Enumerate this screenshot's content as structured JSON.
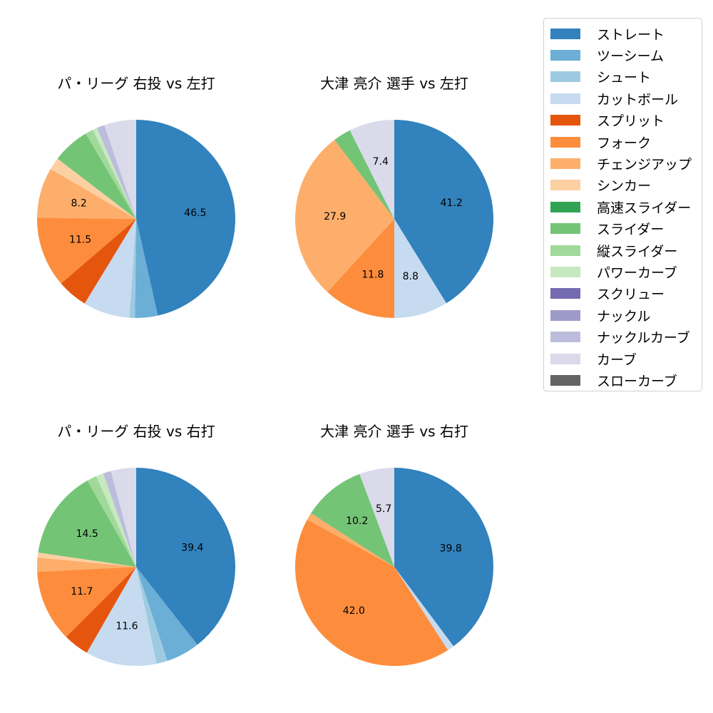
{
  "legend": {
    "items": [
      {
        "label": "ストレート",
        "color": "#3182bd"
      },
      {
        "label": "ツーシーム",
        "color": "#6baed6"
      },
      {
        "label": "シュート",
        "color": "#9ecae1"
      },
      {
        "label": "カットボール",
        "color": "#c6dbef"
      },
      {
        "label": "スプリット",
        "color": "#e6550d"
      },
      {
        "label": "フォーク",
        "color": "#fd8d3c"
      },
      {
        "label": "チェンジアップ",
        "color": "#fdae6b"
      },
      {
        "label": "シンカー",
        "color": "#fdd0a2"
      },
      {
        "label": "高速スライダー",
        "color": "#31a354"
      },
      {
        "label": "スライダー",
        "color": "#74c476"
      },
      {
        "label": "縦スライダー",
        "color": "#a1d99b"
      },
      {
        "label": "パワーカーブ",
        "color": "#c7e9c0"
      },
      {
        "label": "スクリュー",
        "color": "#756bb1"
      },
      {
        "label": "ナックル",
        "color": "#9e9ac8"
      },
      {
        "label": "ナックルカーブ",
        "color": "#bcbddc"
      },
      {
        "label": "カーブ",
        "color": "#dadaeb"
      },
      {
        "label": "スローカーブ",
        "color": "#636363"
      }
    ]
  },
  "chart_data": [
    {
      "type": "pie",
      "title": "パ・リーグ 右投 vs 左打",
      "label_threshold": 8,
      "slices": [
        {
          "name": "ストレート",
          "value": 46.5
        },
        {
          "name": "ツーシーム",
          "value": 3.7
        },
        {
          "name": "シュート",
          "value": 0.9
        },
        {
          "name": "カットボール",
          "value": 7.6
        },
        {
          "name": "スプリット",
          "value": 5.0
        },
        {
          "name": "フォーク",
          "value": 11.5
        },
        {
          "name": "チェンジアップ",
          "value": 8.2
        },
        {
          "name": "シンカー",
          "value": 2.0
        },
        {
          "name": "スライダー",
          "value": 6.1
        },
        {
          "name": "縦スライダー",
          "value": 1.3
        },
        {
          "name": "パワーカーブ",
          "value": 0.7
        },
        {
          "name": "ナックルカーブ",
          "value": 1.3
        },
        {
          "name": "カーブ",
          "value": 5.2
        }
      ]
    },
    {
      "type": "pie",
      "title": "大津 亮介 選手 vs 左打",
      "label_threshold": 5,
      "slices": [
        {
          "name": "ストレート",
          "value": 41.2
        },
        {
          "name": "カットボール",
          "value": 8.8
        },
        {
          "name": "フォーク",
          "value": 11.8
        },
        {
          "name": "チェンジアップ",
          "value": 27.9
        },
        {
          "name": "スライダー",
          "value": 2.9
        },
        {
          "name": "カーブ",
          "value": 7.4
        }
      ]
    },
    {
      "type": "pie",
      "title": "パ・リーグ 右投 vs 右打",
      "label_threshold": 10,
      "slices": [
        {
          "name": "ストレート",
          "value": 39.4
        },
        {
          "name": "ツーシーム",
          "value": 5.5
        },
        {
          "name": "シュート",
          "value": 1.8
        },
        {
          "name": "カットボール",
          "value": 11.6
        },
        {
          "name": "スプリット",
          "value": 4.2
        },
        {
          "name": "フォーク",
          "value": 11.7
        },
        {
          "name": "チェンジアップ",
          "value": 2.3
        },
        {
          "name": "シンカー",
          "value": 0.8
        },
        {
          "name": "スライダー",
          "value": 14.5
        },
        {
          "name": "縦スライダー",
          "value": 1.6
        },
        {
          "name": "パワーカーブ",
          "value": 1.2
        },
        {
          "name": "ナックルカーブ",
          "value": 1.3
        },
        {
          "name": "カーブ",
          "value": 4.1
        }
      ]
    },
    {
      "type": "pie",
      "title": "大津 亮介 選手 vs 右打",
      "label_threshold": 5,
      "slices": [
        {
          "name": "ストレート",
          "value": 39.8
        },
        {
          "name": "カットボール",
          "value": 1.1
        },
        {
          "name": "フォーク",
          "value": 42.0
        },
        {
          "name": "チェンジアップ",
          "value": 1.2
        },
        {
          "name": "スライダー",
          "value": 10.2
        },
        {
          "name": "カーブ",
          "value": 5.7
        }
      ]
    }
  ]
}
